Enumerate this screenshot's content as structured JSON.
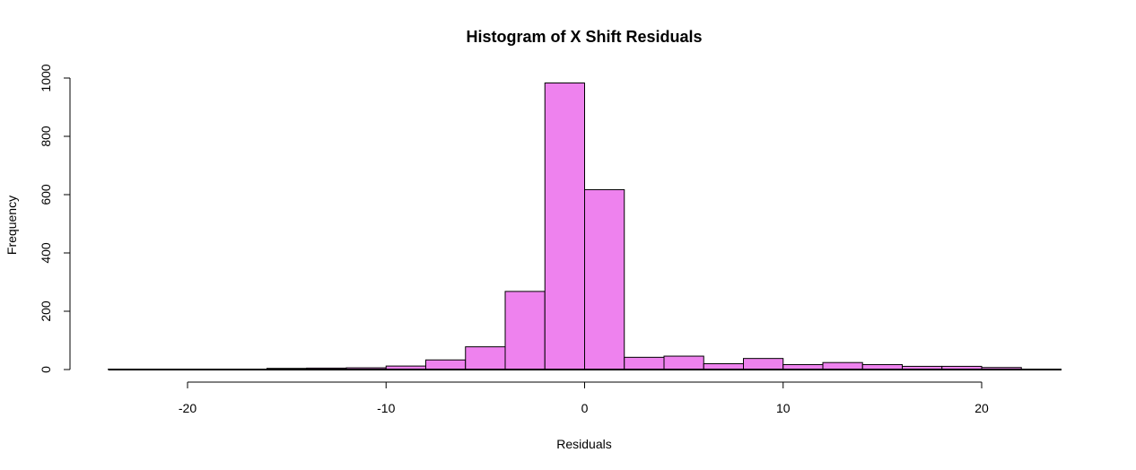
{
  "chart_data": {
    "type": "bar",
    "title": "Histogram of X Shift Residuals",
    "xlabel": "Residuals",
    "ylabel": "Frequency",
    "xlim": [
      -24,
      24
    ],
    "ylim": [
      0,
      1000
    ],
    "x_ticks": [
      -20,
      -10,
      0,
      10,
      20
    ],
    "y_ticks": [
      0,
      200,
      400,
      600,
      800,
      1000
    ],
    "bin_width": 2,
    "bins": [
      {
        "start": -24,
        "end": -22,
        "count": 1
      },
      {
        "start": -22,
        "end": -20,
        "count": 1
      },
      {
        "start": -20,
        "end": -18,
        "count": 1
      },
      {
        "start": -18,
        "end": -16,
        "count": 1
      },
      {
        "start": -16,
        "end": -14,
        "count": 4
      },
      {
        "start": -14,
        "end": -12,
        "count": 5
      },
      {
        "start": -12,
        "end": -10,
        "count": 6
      },
      {
        "start": -10,
        "end": -8,
        "count": 12
      },
      {
        "start": -8,
        "end": -6,
        "count": 33
      },
      {
        "start": -6,
        "end": -4,
        "count": 78
      },
      {
        "start": -4,
        "end": -2,
        "count": 268
      },
      {
        "start": -2,
        "end": 0,
        "count": 983
      },
      {
        "start": 0,
        "end": 2,
        "count": 617
      },
      {
        "start": 2,
        "end": 4,
        "count": 42
      },
      {
        "start": 4,
        "end": 6,
        "count": 46
      },
      {
        "start": 6,
        "end": 8,
        "count": 20
      },
      {
        "start": 8,
        "end": 10,
        "count": 38
      },
      {
        "start": 10,
        "end": 12,
        "count": 17
      },
      {
        "start": 12,
        "end": 14,
        "count": 24
      },
      {
        "start": 14,
        "end": 16,
        "count": 17
      },
      {
        "start": 16,
        "end": 18,
        "count": 11
      },
      {
        "start": 18,
        "end": 20,
        "count": 11
      },
      {
        "start": 20,
        "end": 22,
        "count": 7
      },
      {
        "start": 22,
        "end": 24,
        "count": 1
      }
    ],
    "fill_color": "#ee82ee",
    "stroke_color": "#000000"
  }
}
